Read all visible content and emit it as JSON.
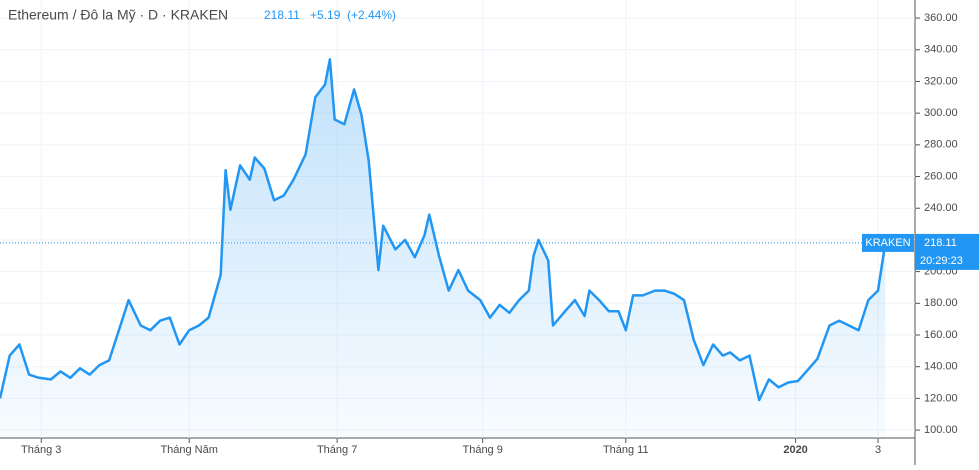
{
  "chart_data": {
    "type": "area",
    "title": "Ethereum / Đô la Mỹ · D · KRAKEN",
    "change": "+5.19",
    "change_pct": "(+2.44%)",
    "exchange_tag": "KRAKEN",
    "countdown": "20:29:23",
    "color": "#2196f3",
    "x": [
      0,
      4,
      8,
      12,
      16,
      21,
      25,
      29,
      33,
      37,
      41,
      45,
      49,
      53,
      58,
      62,
      66,
      70,
      74,
      78,
      82,
      86,
      91,
      93,
      95,
      99,
      103,
      105,
      109,
      113,
      117,
      121,
      126,
      130,
      134,
      136,
      138,
      142,
      146,
      149,
      152,
      154,
      156,
      158,
      163,
      167,
      171,
      175,
      177,
      181,
      185,
      189,
      193,
      198,
      202,
      206,
      210,
      214,
      218,
      220,
      222,
      226,
      228,
      233,
      237,
      241,
      243,
      247,
      251,
      255,
      258,
      261,
      265,
      270,
      274,
      278,
      282,
      286,
      290,
      294,
      298,
      301,
      305,
      309,
      313,
      317,
      321,
      325,
      329,
      333,
      337,
      342,
      346,
      350,
      354,
      358,
      362,
      365
    ],
    "series": [
      {
        "name": "Ethereum",
        "values": [
          120,
          147,
          154,
          135,
          133,
          132,
          137,
          133,
          139,
          135,
          141,
          144,
          163,
          182,
          166,
          163,
          169,
          171,
          154,
          163,
          166,
          171,
          198,
          264,
          239,
          267,
          258,
          272,
          265,
          245,
          248,
          258,
          274,
          310,
          318,
          334,
          296,
          293,
          315,
          299,
          270,
          236,
          201,
          229,
          214,
          220,
          209,
          223,
          236,
          210,
          188,
          201,
          188,
          182,
          171,
          179,
          174,
          182,
          188,
          210,
          220,
          207,
          166,
          175,
          182,
          172,
          188,
          182,
          175,
          175,
          163,
          185,
          185,
          188,
          188,
          186,
          182,
          157,
          141,
          154,
          147,
          149,
          144,
          147,
          119,
          132,
          127,
          130,
          131,
          138,
          145,
          166,
          169,
          166,
          163,
          182,
          188,
          218.11
        ]
      }
    ],
    "xlim": [
      0,
      376
    ],
    "xticks": [
      {
        "value": 17,
        "label": "Tháng 3"
      },
      {
        "value": 78,
        "label": "Tháng Năm"
      },
      {
        "value": 139,
        "label": "Tháng 7"
      },
      {
        "value": 199,
        "label": "Tháng 9"
      },
      {
        "value": 258,
        "label": "Tháng 11"
      },
      {
        "value": 328,
        "label": "2020"
      },
      {
        "value": 362,
        "label": "3"
      }
    ],
    "ylim": [
      95,
      371.4
    ],
    "yticks": [
      {
        "value": 100,
        "label": "100.00"
      },
      {
        "value": 120,
        "label": "120.00"
      },
      {
        "value": 140,
        "label": "140.00"
      },
      {
        "value": 160,
        "label": "160.00"
      },
      {
        "value": 180,
        "label": "180.00"
      },
      {
        "value": 200,
        "label": "200.00"
      },
      {
        "value": 220,
        "label": "220.00"
      },
      {
        "value": 240,
        "label": "240.00"
      },
      {
        "value": 260,
        "label": "260.00"
      },
      {
        "value": 280,
        "label": "280.00"
      },
      {
        "value": 300,
        "label": "300.00"
      },
      {
        "value": 320,
        "label": "320.00"
      },
      {
        "value": 340,
        "label": "340.00"
      },
      {
        "value": 360,
        "label": "360.00"
      }
    ]
  }
}
